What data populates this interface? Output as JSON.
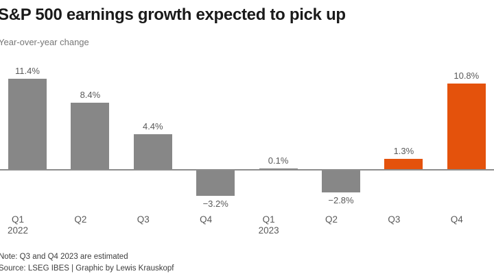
{
  "header": {
    "title": "S&P 500 earnings growth expected to pick up",
    "subtitle": "Year-over-year change"
  },
  "footer": {
    "note": "Note: Q3 and Q4 2023 are estimated",
    "source": "Source: LSEG IBES | Graphic by Lewis Krauskopf"
  },
  "colors": {
    "actual_bar": "#878787",
    "estimated_bar": "#e4520c",
    "axis_line": "#8c8c8c",
    "value_label": "#595959",
    "tick_label": "#595959"
  },
  "chart_data": {
    "type": "bar",
    "title": "S&P 500 earnings growth expected to pick up",
    "subtitle": "Year-over-year change",
    "xlabel": "",
    "ylabel": "Year-over-year change (%)",
    "categories": [
      "Q1 2022",
      "Q2 2022",
      "Q3 2022",
      "Q4 2022",
      "Q1 2023",
      "Q2 2023",
      "Q3 2023",
      "Q4 2023"
    ],
    "x_tick_labels": [
      [
        "Q1",
        "2022"
      ],
      [
        "Q2"
      ],
      [
        "Q3"
      ],
      [
        "Q4"
      ],
      [
        "Q1",
        "2023"
      ],
      [
        "Q2"
      ],
      [
        "Q3"
      ],
      [
        "Q4"
      ]
    ],
    "values": [
      11.4,
      8.4,
      4.4,
      -3.2,
      0.1,
      -2.8,
      1.3,
      10.8
    ],
    "value_labels": [
      "11.4%",
      "8.4%",
      "4.4%",
      "−3.2%",
      "0.1%",
      "−2.8%",
      "1.3%",
      "10.8%"
    ],
    "estimated": [
      false,
      false,
      false,
      false,
      false,
      false,
      true,
      true
    ],
    "ylim": [
      -4.5,
      13
    ],
    "grid": false,
    "legend": false,
    "baseline": 0
  }
}
